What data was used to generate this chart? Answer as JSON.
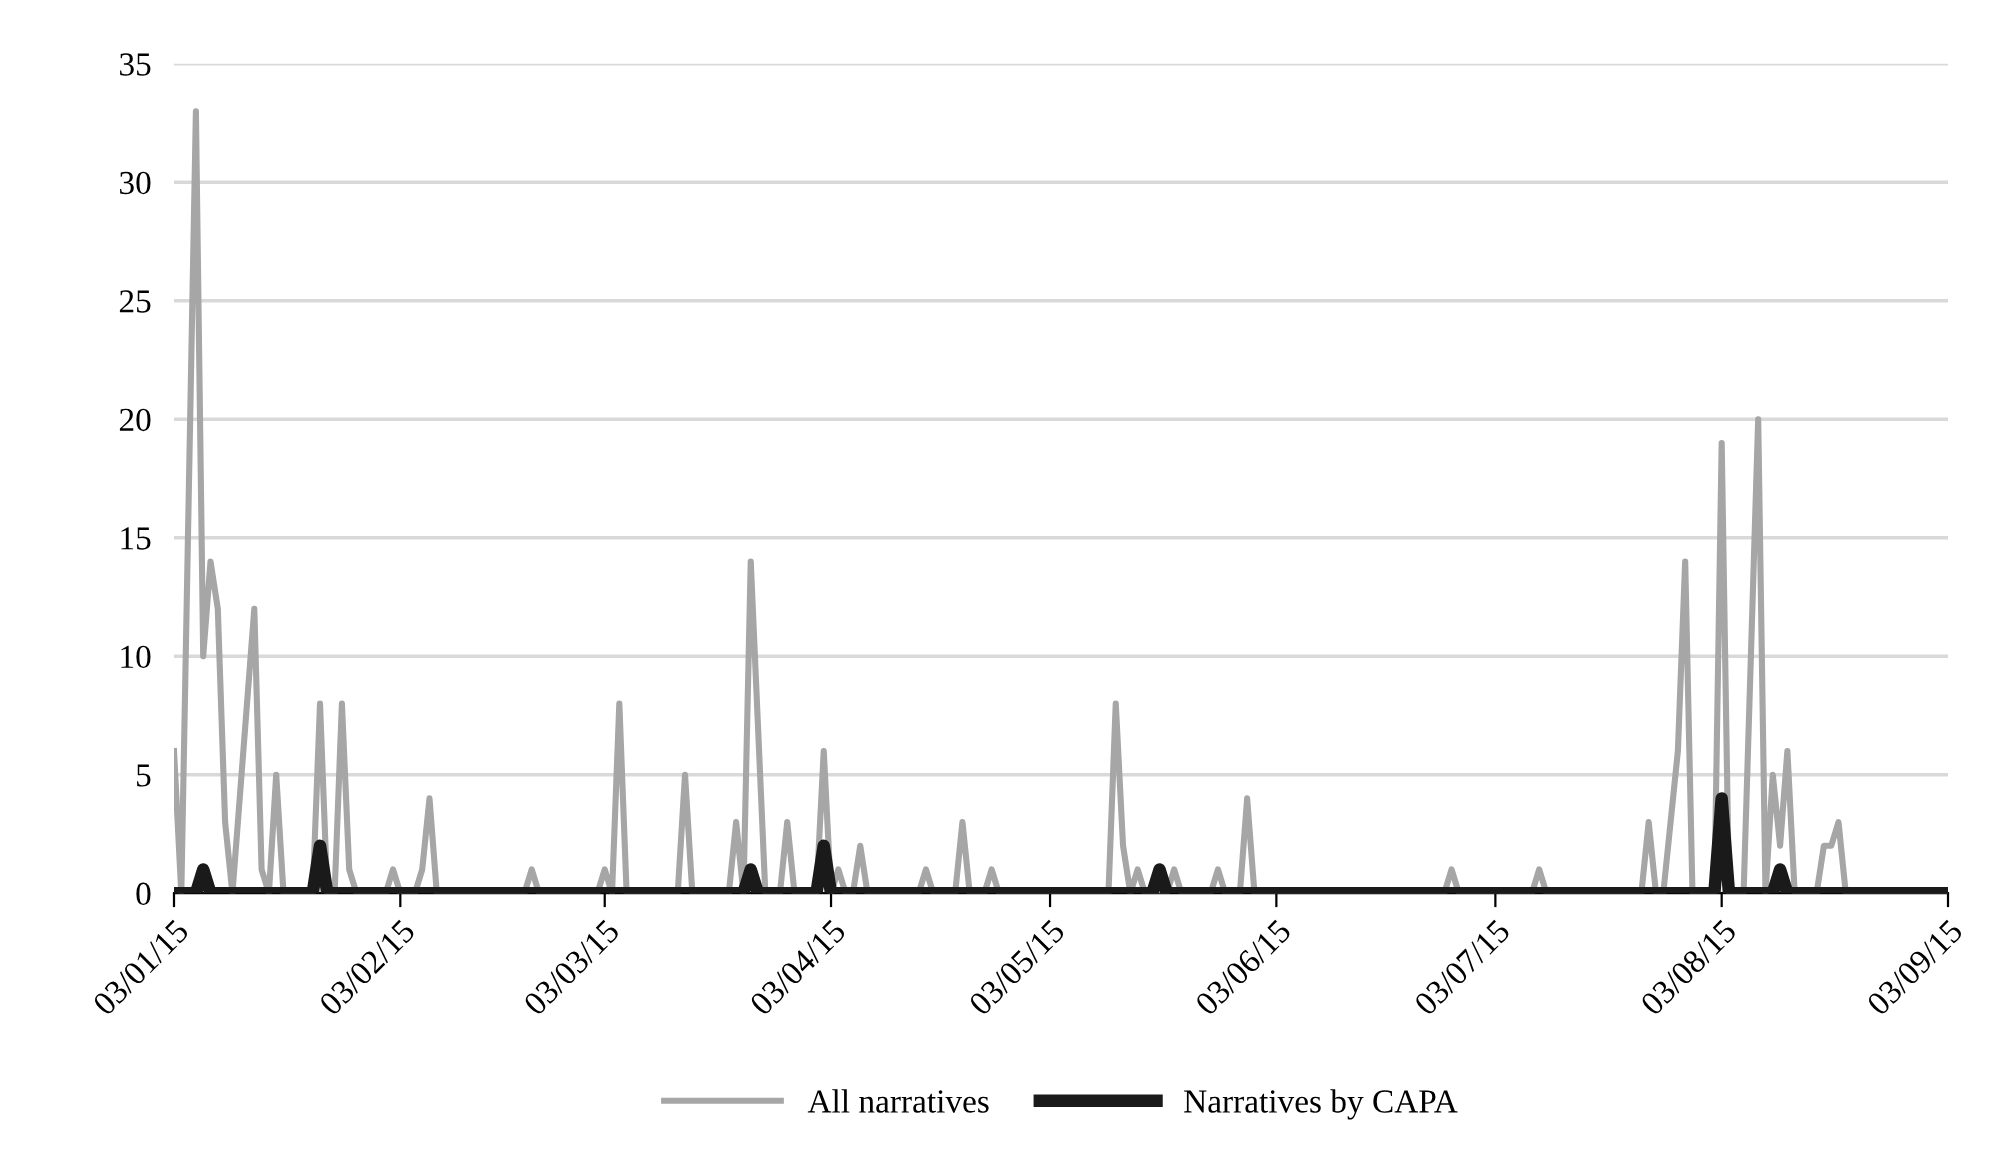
{
  "chart_data": {
    "type": "line",
    "xlim": [
      "2015-01-03",
      "2015-09-03"
    ],
    "xticks": [
      {
        "value": "2015-01-03",
        "label": "03/01/15"
      },
      {
        "value": "2015-02-03",
        "label": "03/02/15"
      },
      {
        "value": "2015-03-03",
        "label": "03/03/15"
      },
      {
        "value": "2015-04-03",
        "label": "03/04/15"
      },
      {
        "value": "2015-05-03",
        "label": "03/05/15"
      },
      {
        "value": "2015-06-03",
        "label": "03/06/15"
      },
      {
        "value": "2015-07-03",
        "label": "03/07/15"
      },
      {
        "value": "2015-08-03",
        "label": "03/08/15"
      },
      {
        "value": "2015-09-03",
        "label": "03/09/15"
      }
    ],
    "ylim": [
      0,
      35
    ],
    "yticks": [
      0,
      5,
      10,
      15,
      20,
      25,
      30,
      35
    ],
    "grid": "y",
    "legend": "bottom",
    "marker": "none",
    "line_style": "solid",
    "series": [
      {
        "name": "All narratives",
        "color": "#a6a6a6",
        "x": [
          "2015-01-03",
          "2015-01-04",
          "2015-01-06",
          "2015-01-07",
          "2015-01-08",
          "2015-01-09",
          "2015-01-10",
          "2015-01-11",
          "2015-01-14",
          "2015-01-15",
          "2015-01-16",
          "2015-01-17",
          "2015-01-18",
          "2015-01-22",
          "2015-01-23",
          "2015-01-24",
          "2015-01-25",
          "2015-01-26",
          "2015-01-27",
          "2015-01-28",
          "2015-02-01",
          "2015-02-02",
          "2015-02-03",
          "2015-02-05",
          "2015-02-06",
          "2015-02-07",
          "2015-02-08",
          "2015-02-20",
          "2015-02-21",
          "2015-02-22",
          "2015-03-02",
          "2015-03-03",
          "2015-03-04",
          "2015-03-05",
          "2015-03-06",
          "2015-03-13",
          "2015-03-14",
          "2015-03-15",
          "2015-03-20",
          "2015-03-21",
          "2015-03-22",
          "2015-03-23",
          "2015-03-25",
          "2015-03-27",
          "2015-03-28",
          "2015-03-29",
          "2015-04-01",
          "2015-04-02",
          "2015-04-03",
          "2015-04-04",
          "2015-04-05",
          "2015-04-06",
          "2015-04-07",
          "2015-04-08",
          "2015-04-15",
          "2015-04-16",
          "2015-04-17",
          "2015-04-20",
          "2015-04-21",
          "2015-04-22",
          "2015-04-24",
          "2015-04-25",
          "2015-04-26",
          "2015-05-11",
          "2015-05-12",
          "2015-05-13",
          "2015-05-14",
          "2015-05-15",
          "2015-05-16",
          "2015-05-19",
          "2015-05-20",
          "2015-05-21",
          "2015-05-25",
          "2015-05-26",
          "2015-05-27",
          "2015-05-29",
          "2015-05-30",
          "2015-05-31",
          "2015-06-26",
          "2015-06-27",
          "2015-06-28",
          "2015-07-08",
          "2015-07-09",
          "2015-07-10",
          "2015-07-23",
          "2015-07-24",
          "2015-07-25",
          "2015-07-26",
          "2015-07-28",
          "2015-07-29",
          "2015-07-30",
          "2015-08-02",
          "2015-08-03",
          "2015-08-04",
          "2015-08-06",
          "2015-08-08",
          "2015-08-09",
          "2015-08-10",
          "2015-08-11",
          "2015-08-12",
          "2015-08-13",
          "2015-08-16",
          "2015-08-17",
          "2015-08-18",
          "2015-08-19",
          "2015-08-20",
          "2015-09-03"
        ],
        "values": [
          6,
          0,
          33,
          10,
          14,
          12,
          3,
          0,
          12,
          1,
          0,
          5,
          0,
          0,
          8,
          0,
          0,
          8,
          1,
          0,
          0,
          1,
          0,
          0,
          1,
          4,
          0,
          0,
          1,
          0,
          0,
          1,
          0,
          8,
          0,
          0,
          5,
          0,
          0,
          3,
          0,
          14,
          0,
          0,
          3,
          0,
          0,
          6,
          0,
          1,
          0,
          0,
          2,
          0,
          0,
          1,
          0,
          0,
          3,
          0,
          0,
          1,
          0,
          0,
          8,
          2,
          0,
          1,
          0,
          0,
          1,
          0,
          0,
          1,
          0,
          0,
          4,
          0,
          0,
          1,
          0,
          0,
          1,
          0,
          0,
          3,
          0,
          0,
          6,
          14,
          0,
          0,
          19,
          0,
          0,
          20,
          0,
          5,
          2,
          6,
          0,
          0,
          2,
          2,
          3,
          0,
          0
        ]
      },
      {
        "name": "Narratives by CAPA",
        "color": "#1a1a1a",
        "x": [
          "2015-01-03",
          "2015-01-06",
          "2015-01-07",
          "2015-01-08",
          "2015-01-22",
          "2015-01-23",
          "2015-01-24",
          "2015-03-22",
          "2015-03-23",
          "2015-03-24",
          "2015-04-01",
          "2015-04-02",
          "2015-04-03",
          "2015-05-17",
          "2015-05-18",
          "2015-05-19",
          "2015-08-02",
          "2015-08-03",
          "2015-08-04",
          "2015-08-10",
          "2015-08-11",
          "2015-08-12",
          "2015-09-03"
        ],
        "values": [
          0,
          0,
          1,
          0,
          0,
          2,
          0,
          0,
          1,
          0,
          0,
          2,
          0,
          0,
          1,
          0,
          0,
          4,
          0,
          0,
          1,
          0,
          0
        ]
      }
    ]
  }
}
